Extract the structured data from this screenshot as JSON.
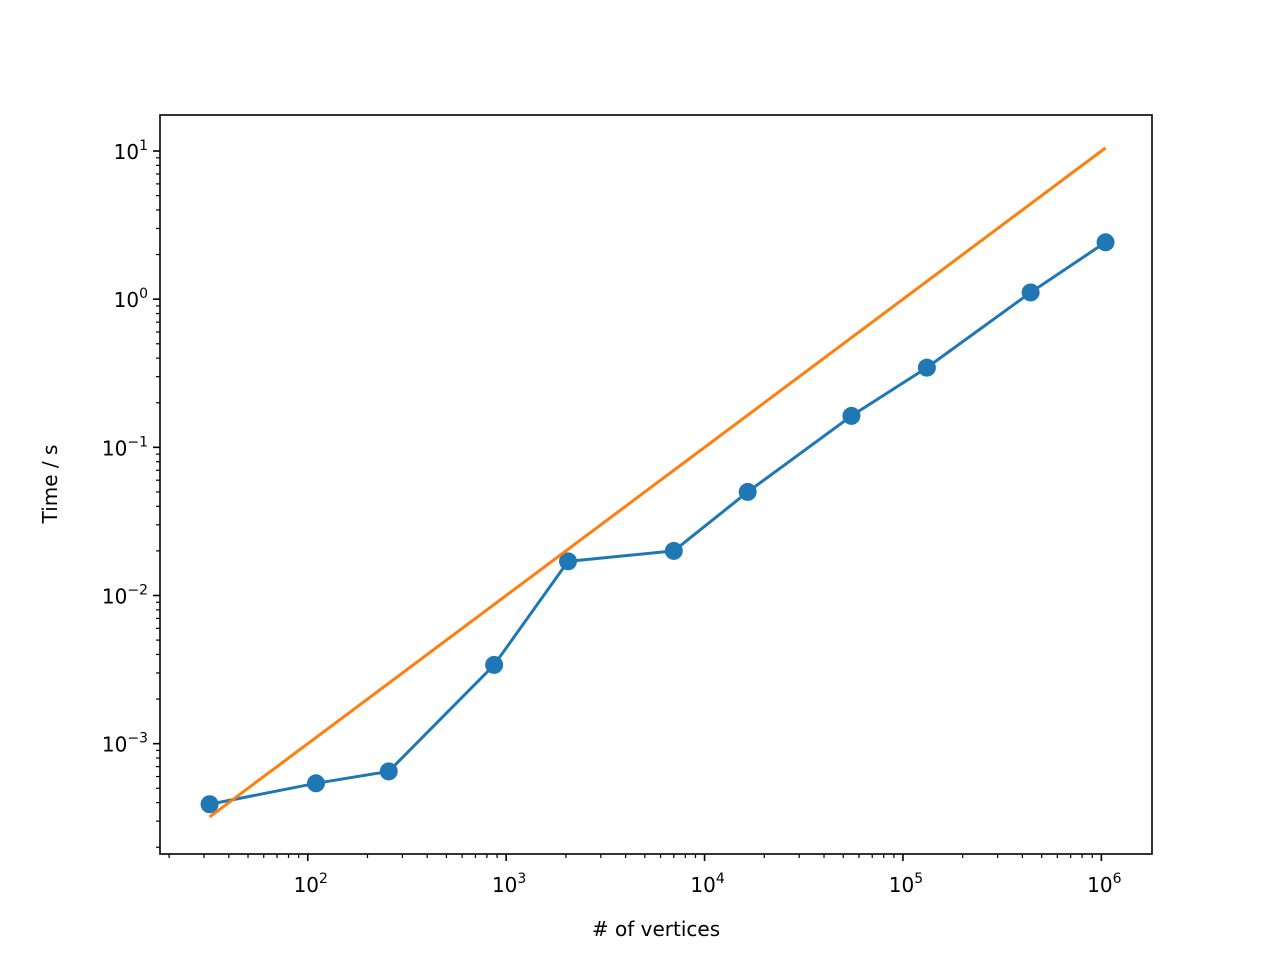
{
  "chart_data": {
    "type": "line",
    "title": "",
    "xlabel": "# of vertices",
    "ylabel": "Time / s",
    "xscale": "log",
    "yscale": "log",
    "xlim": [
      18,
      1800000
    ],
    "ylim": [
      0.00018,
      17.5
    ],
    "grid": false,
    "x_ticks": [
      {
        "value": 100,
        "base": "10",
        "exp": "2"
      },
      {
        "value": 1000,
        "base": "10",
        "exp": "3"
      },
      {
        "value": 10000,
        "base": "10",
        "exp": "4"
      },
      {
        "value": 100000,
        "base": "10",
        "exp": "5"
      },
      {
        "value": 1000000,
        "base": "10",
        "exp": "6"
      }
    ],
    "y_ticks": [
      {
        "value": 0.001,
        "base": "10",
        "exp": "−3"
      },
      {
        "value": 0.01,
        "base": "10",
        "exp": "−2"
      },
      {
        "value": 0.1,
        "base": "10",
        "exp": "−1"
      },
      {
        "value": 1,
        "base": "10",
        "exp": "0"
      },
      {
        "value": 10,
        "base": "10",
        "exp": "1"
      }
    ],
    "series": [
      {
        "color": "#1f77b4",
        "marker": "circle",
        "x": [
          32,
          110,
          256,
          870,
          2050,
          7000,
          16500,
          55000,
          132000,
          440000,
          1050000
        ],
        "y": [
          0.00039,
          0.00054,
          0.00065,
          0.0034,
          0.017,
          0.02,
          0.05,
          0.163,
          0.345,
          1.11,
          2.42
        ]
      },
      {
        "color": "#ff7f0e",
        "marker": "none",
        "x": [
          32,
          1050000
        ],
        "y": [
          0.00032,
          10.5
        ]
      }
    ]
  }
}
